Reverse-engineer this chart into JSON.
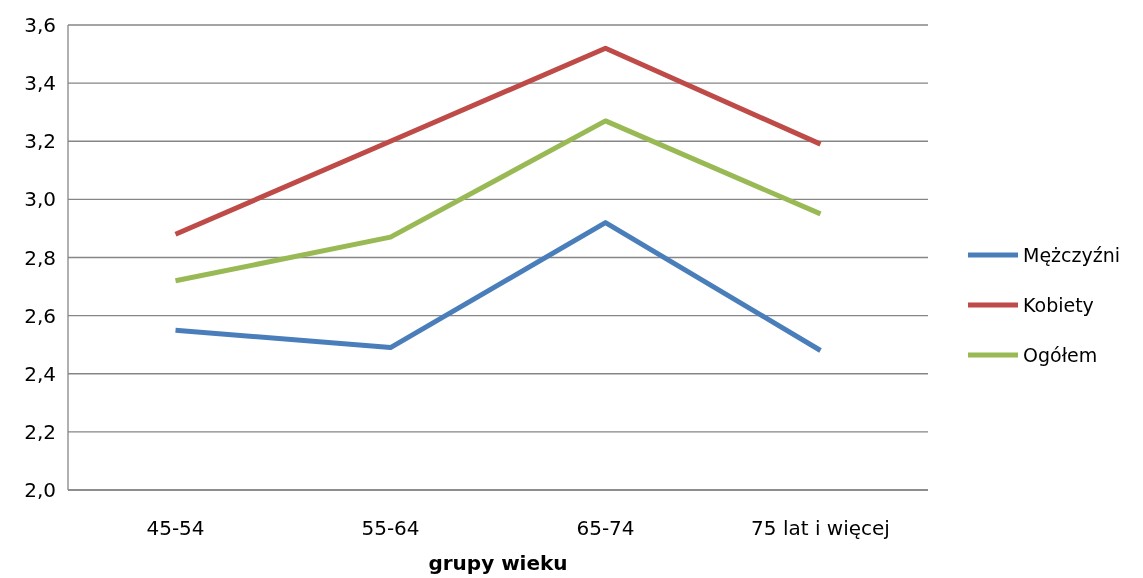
{
  "chart_data": {
    "type": "line",
    "xlabel": "grupy wieku",
    "categories": [
      "45-54",
      "55-64",
      "65-74",
      "75 lat i więcej"
    ],
    "series": [
      {
        "name": "Mężczyźni",
        "color": "#4a7ebb",
        "values": [
          2.55,
          2.49,
          2.92,
          2.48
        ]
      },
      {
        "name": "Kobiety",
        "color": "#be4b48",
        "values": [
          2.88,
          3.2,
          3.52,
          3.19
        ]
      },
      {
        "name": "Ogółem",
        "color": "#98b954",
        "values": [
          2.72,
          2.87,
          3.27,
          2.95
        ]
      }
    ],
    "ylim": [
      2.0,
      3.6
    ],
    "yticks": [
      {
        "value": 2.0,
        "label": "2,0"
      },
      {
        "value": 2.2,
        "label": "2,2"
      },
      {
        "value": 2.4,
        "label": "2,4"
      },
      {
        "value": 2.6,
        "label": "2,6"
      },
      {
        "value": 2.8,
        "label": "2,8"
      },
      {
        "value": 3.0,
        "label": "3,0"
      },
      {
        "value": 3.2,
        "label": "3,2"
      },
      {
        "value": 3.4,
        "label": "3,4"
      },
      {
        "value": 3.6,
        "label": "3,6"
      }
    ],
    "grid": "y",
    "legend": "right",
    "marker": "none",
    "line_style": "solid"
  }
}
